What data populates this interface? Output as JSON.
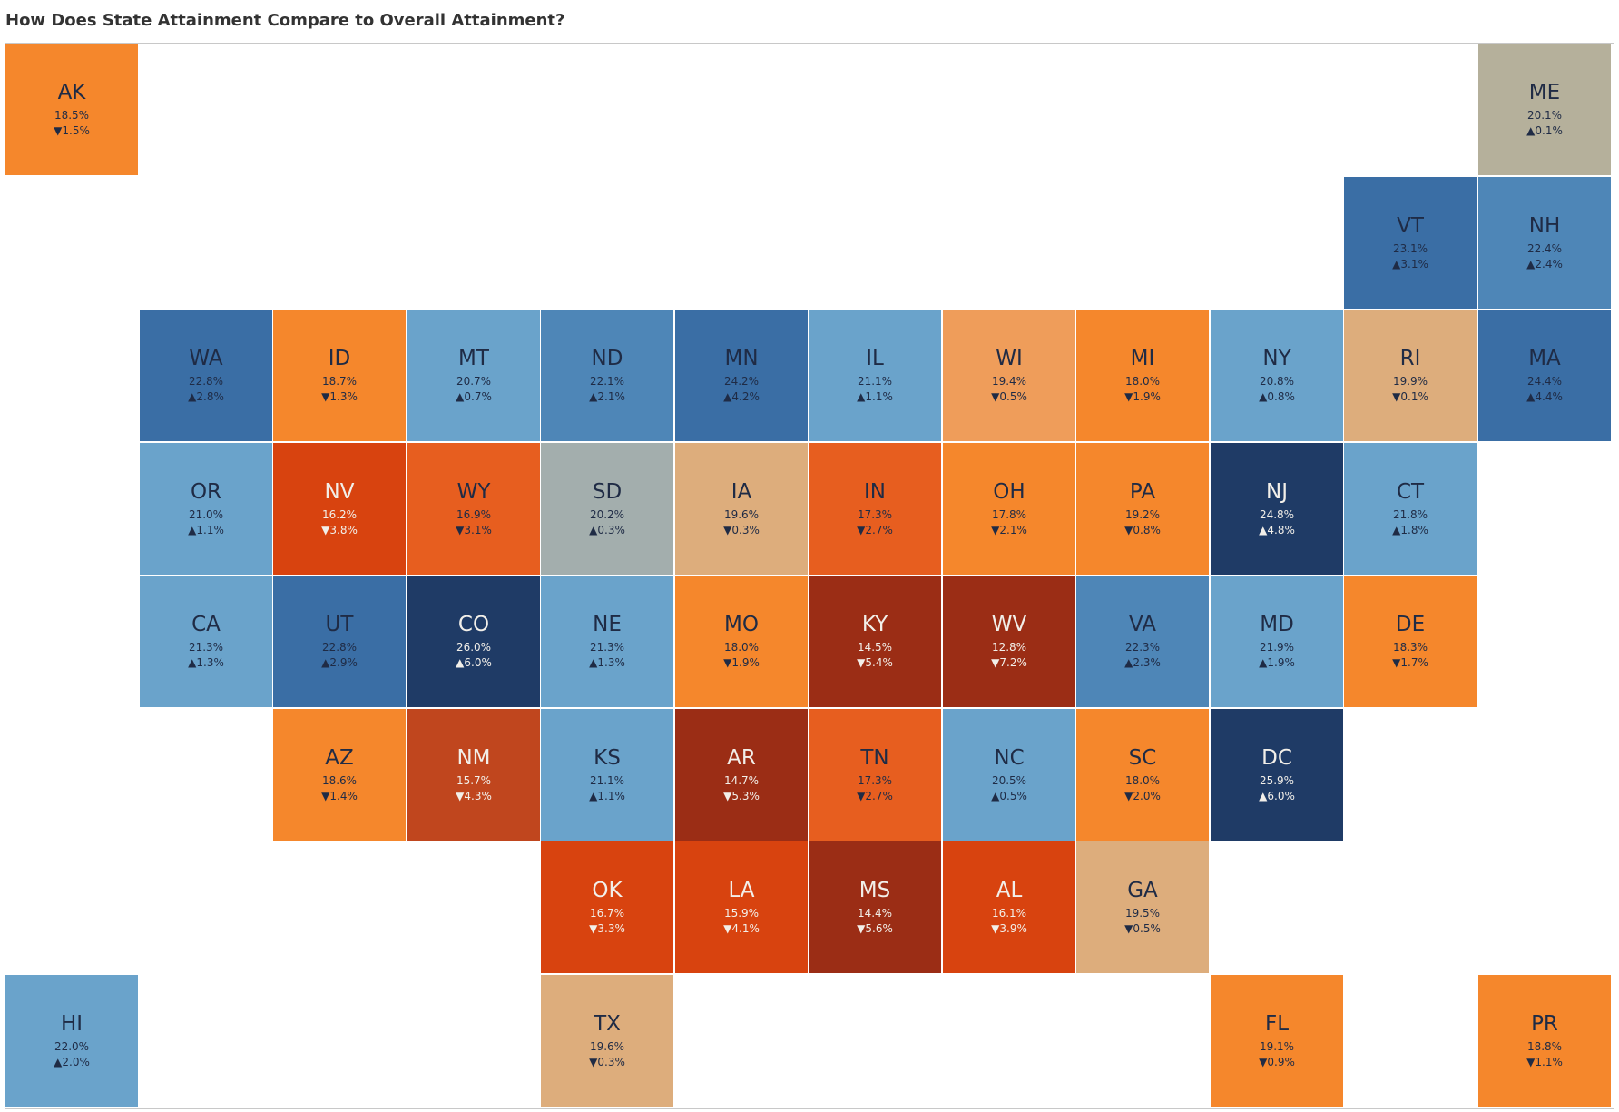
{
  "title": "How Does State Attainment Compare to Overall Attainment?",
  "colors": {
    "dark_blue": "#1f3b66",
    "blue": "#3a6ea5",
    "mid_blue": "#4e86b7",
    "light_blue": "#6aa3cb",
    "gray_blue": "#a3aead",
    "gray": "#b5b09b",
    "tan": "#ddad7c",
    "light_orange": "#ef9d5a",
    "orange": "#f5872c",
    "dark_orange": "#e75e1f",
    "red_orange": "#d8430f",
    "brick": "#c0461e",
    "dark_red": "#9b2d15"
  },
  "states": [
    {
      "abbr": "AK",
      "value": "18.5%",
      "diff": "▼1.5%",
      "col": 0,
      "row": 0,
      "color": "orange"
    },
    {
      "abbr": "ME",
      "value": "20.1%",
      "diff": "▲0.1%",
      "col": 11,
      "row": 0,
      "color": "gray"
    },
    {
      "abbr": "VT",
      "value": "23.1%",
      "diff": "▲3.1%",
      "col": 10,
      "row": 1,
      "color": "blue"
    },
    {
      "abbr": "NH",
      "value": "22.4%",
      "diff": "▲2.4%",
      "col": 11,
      "row": 1,
      "color": "mid_blue"
    },
    {
      "abbr": "WA",
      "value": "22.8%",
      "diff": "▲2.8%",
      "col": 1,
      "row": 2,
      "color": "blue"
    },
    {
      "abbr": "ID",
      "value": "18.7%",
      "diff": "▼1.3%",
      "col": 2,
      "row": 2,
      "color": "orange"
    },
    {
      "abbr": "MT",
      "value": "20.7%",
      "diff": "▲0.7%",
      "col": 3,
      "row": 2,
      "color": "light_blue"
    },
    {
      "abbr": "ND",
      "value": "22.1%",
      "diff": "▲2.1%",
      "col": 4,
      "row": 2,
      "color": "mid_blue"
    },
    {
      "abbr": "MN",
      "value": "24.2%",
      "diff": "▲4.2%",
      "col": 5,
      "row": 2,
      "color": "blue"
    },
    {
      "abbr": "IL",
      "value": "21.1%",
      "diff": "▲1.1%",
      "col": 6,
      "row": 2,
      "color": "light_blue"
    },
    {
      "abbr": "WI",
      "value": "19.4%",
      "diff": "▼0.5%",
      "col": 7,
      "row": 2,
      "color": "light_orange"
    },
    {
      "abbr": "MI",
      "value": "18.0%",
      "diff": "▼1.9%",
      "col": 8,
      "row": 2,
      "color": "orange"
    },
    {
      "abbr": "NY",
      "value": "20.8%",
      "diff": "▲0.8%",
      "col": 9,
      "row": 2,
      "color": "light_blue"
    },
    {
      "abbr": "RI",
      "value": "19.9%",
      "diff": "▼0.1%",
      "col": 10,
      "row": 2,
      "color": "tan"
    },
    {
      "abbr": "MA",
      "value": "24.4%",
      "diff": "▲4.4%",
      "col": 11,
      "row": 2,
      "color": "blue"
    },
    {
      "abbr": "OR",
      "value": "21.0%",
      "diff": "▲1.1%",
      "col": 1,
      "row": 3,
      "color": "light_blue"
    },
    {
      "abbr": "NV",
      "value": "16.2%",
      "diff": "▼3.8%",
      "col": 2,
      "row": 3,
      "color": "red_orange"
    },
    {
      "abbr": "WY",
      "value": "16.9%",
      "diff": "▼3.1%",
      "col": 3,
      "row": 3,
      "color": "dark_orange"
    },
    {
      "abbr": "SD",
      "value": "20.2%",
      "diff": "▲0.3%",
      "col": 4,
      "row": 3,
      "color": "gray_blue"
    },
    {
      "abbr": "IA",
      "value": "19.6%",
      "diff": "▼0.3%",
      "col": 5,
      "row": 3,
      "color": "tan"
    },
    {
      "abbr": "IN",
      "value": "17.3%",
      "diff": "▼2.7%",
      "col": 6,
      "row": 3,
      "color": "dark_orange"
    },
    {
      "abbr": "OH",
      "value": "17.8%",
      "diff": "▼2.1%",
      "col": 7,
      "row": 3,
      "color": "orange"
    },
    {
      "abbr": "PA",
      "value": "19.2%",
      "diff": "▼0.8%",
      "col": 8,
      "row": 3,
      "color": "orange"
    },
    {
      "abbr": "NJ",
      "value": "24.8%",
      "diff": "▲4.8%",
      "col": 9,
      "row": 3,
      "color": "dark_blue"
    },
    {
      "abbr": "CT",
      "value": "21.8%",
      "diff": "▲1.8%",
      "col": 10,
      "row": 3,
      "color": "light_blue"
    },
    {
      "abbr": "CA",
      "value": "21.3%",
      "diff": "▲1.3%",
      "col": 1,
      "row": 4,
      "color": "light_blue"
    },
    {
      "abbr": "UT",
      "value": "22.8%",
      "diff": "▲2.9%",
      "col": 2,
      "row": 4,
      "color": "blue"
    },
    {
      "abbr": "CO",
      "value": "26.0%",
      "diff": "▲6.0%",
      "col": 3,
      "row": 4,
      "color": "dark_blue"
    },
    {
      "abbr": "NE",
      "value": "21.3%",
      "diff": "▲1.3%",
      "col": 4,
      "row": 4,
      "color": "light_blue"
    },
    {
      "abbr": "MO",
      "value": "18.0%",
      "diff": "▼1.9%",
      "col": 5,
      "row": 4,
      "color": "orange"
    },
    {
      "abbr": "KY",
      "value": "14.5%",
      "diff": "▼5.4%",
      "col": 6,
      "row": 4,
      "color": "dark_red"
    },
    {
      "abbr": "WV",
      "value": "12.8%",
      "diff": "▼7.2%",
      "col": 7,
      "row": 4,
      "color": "dark_red"
    },
    {
      "abbr": "VA",
      "value": "22.3%",
      "diff": "▲2.3%",
      "col": 8,
      "row": 4,
      "color": "mid_blue"
    },
    {
      "abbr": "MD",
      "value": "21.9%",
      "diff": "▲1.9%",
      "col": 9,
      "row": 4,
      "color": "light_blue"
    },
    {
      "abbr": "DE",
      "value": "18.3%",
      "diff": "▼1.7%",
      "col": 10,
      "row": 4,
      "color": "orange"
    },
    {
      "abbr": "AZ",
      "value": "18.6%",
      "diff": "▼1.4%",
      "col": 2,
      "row": 5,
      "color": "orange"
    },
    {
      "abbr": "NM",
      "value": "15.7%",
      "diff": "▼4.3%",
      "col": 3,
      "row": 5,
      "color": "brick"
    },
    {
      "abbr": "KS",
      "value": "21.1%",
      "diff": "▲1.1%",
      "col": 4,
      "row": 5,
      "color": "light_blue"
    },
    {
      "abbr": "AR",
      "value": "14.7%",
      "diff": "▼5.3%",
      "col": 5,
      "row": 5,
      "color": "dark_red"
    },
    {
      "abbr": "TN",
      "value": "17.3%",
      "diff": "▼2.7%",
      "col": 6,
      "row": 5,
      "color": "dark_orange"
    },
    {
      "abbr": "NC",
      "value": "20.5%",
      "diff": "▲0.5%",
      "col": 7,
      "row": 5,
      "color": "light_blue"
    },
    {
      "abbr": "SC",
      "value": "18.0%",
      "diff": "▼2.0%",
      "col": 8,
      "row": 5,
      "color": "orange"
    },
    {
      "abbr": "DC",
      "value": "25.9%",
      "diff": "▲6.0%",
      "col": 9,
      "row": 5,
      "color": "dark_blue"
    },
    {
      "abbr": "OK",
      "value": "16.7%",
      "diff": "▼3.3%",
      "col": 4,
      "row": 6,
      "color": "red_orange"
    },
    {
      "abbr": "LA",
      "value": "15.9%",
      "diff": "▼4.1%",
      "col": 5,
      "row": 6,
      "color": "red_orange"
    },
    {
      "abbr": "MS",
      "value": "14.4%",
      "diff": "▼5.6%",
      "col": 6,
      "row": 6,
      "color": "dark_red"
    },
    {
      "abbr": "AL",
      "value": "16.1%",
      "diff": "▼3.9%",
      "col": 7,
      "row": 6,
      "color": "red_orange"
    },
    {
      "abbr": "GA",
      "value": "19.5%",
      "diff": "▼0.5%",
      "col": 8,
      "row": 6,
      "color": "tan"
    },
    {
      "abbr": "HI",
      "value": "22.0%",
      "diff": "▲2.0%",
      "col": 0,
      "row": 7,
      "color": "light_blue"
    },
    {
      "abbr": "TX",
      "value": "19.6%",
      "diff": "▼0.3%",
      "col": 4,
      "row": 7,
      "color": "tan"
    },
    {
      "abbr": "FL",
      "value": "19.1%",
      "diff": "▼0.9%",
      "col": 9,
      "row": 7,
      "color": "orange"
    },
    {
      "abbr": "PR",
      "value": "18.8%",
      "diff": "▼1.1%",
      "col": 11,
      "row": 7,
      "color": "orange"
    }
  ]
}
